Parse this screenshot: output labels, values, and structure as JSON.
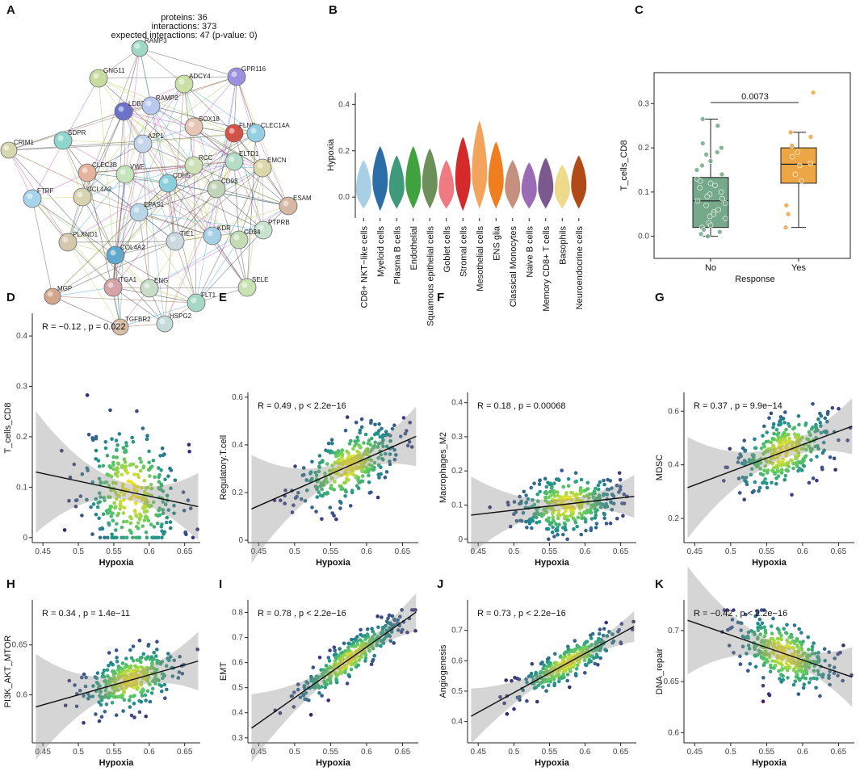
{
  "panel_letters": [
    "A",
    "B",
    "C",
    "D",
    "E",
    "F",
    "G",
    "H",
    "I",
    "J",
    "K"
  ],
  "network": {
    "stats": [
      "proteins: 36",
      "interactions: 373",
      "expected interactions: 47 (p-value: 0)"
    ],
    "nodes": [
      "RAMP3",
      "GNG11",
      "ADCY4",
      "GPR116",
      "LDB2",
      "RAMP2",
      "SDPR",
      "SOX18",
      "FLNB",
      "CLEC14A",
      "CRIM1",
      "CLEC3B",
      "A2P1",
      "RCC",
      "ELTD1",
      "EMCN",
      "FTRF",
      "VWF",
      "CDH5",
      "CD93",
      "ESAM",
      "CCL4A2",
      "EPAS1",
      "PTPRB",
      "PLXND1",
      "COL4A2",
      "TIE1",
      "KDR",
      "CD34",
      "ITGA1",
      "ENG",
      "SELE",
      "MGP",
      "FLT1",
      "TGFBR2",
      "HSPG2"
    ],
    "colors": [
      "#9fd8c6",
      "#c8dca2",
      "#c9e0a6",
      "#9a92e0",
      "#6b72c8",
      "#b9c8ee",
      "#8fd6cc",
      "#e6c6b4",
      "#d2524a",
      "#96cfe4",
      "#d8d8b0",
      "#e4b49c",
      "#c6d6ea",
      "#cfe0b8",
      "#b4dcc6",
      "#dbd7a8",
      "#a6d4ea",
      "#c6e4bc",
      "#8ccfdc",
      "#c2d4b8",
      "#d6b8a4",
      "#d8d4b0",
      "#b8d6e6",
      "#c8e2d0",
      "#d4c8ae",
      "#62a8cc",
      "#cad8e0",
      "#a6d0e6",
      "#c4dcb4",
      "#d4a4a8",
      "#c8dcc8",
      "#c8e2b4",
      "#d4a68c",
      "#a6d8c6",
      "#d8bca4",
      "#c4dcd8"
    ]
  },
  "chart_data": [
    {
      "id": "B",
      "type": "violin",
      "ylabel": "Hypoxia",
      "ylim": [
        -0.09,
        0.45
      ],
      "yticks": [
        0.0,
        0.2,
        0.4
      ],
      "categories": [
        "CD8+ NKT−like cells",
        "Myeloid cells",
        "Plasma B cells",
        "Endothelial",
        "Squamous epithelial cells",
        "Goblet cells",
        "Stromal cells",
        "Mesothelial cells",
        "ENS glia",
        "Classical Monocytes",
        "Naive B cells",
        "Memory CD8+ T cells",
        "Basophils",
        "Neuroendocrine cells"
      ],
      "colors": [
        "#a8cfe4",
        "#2d6ea8",
        "#3f9a7c",
        "#3fa23f",
        "#6d8f5a",
        "#f07a82",
        "#d42a2a",
        "#f2a45c",
        "#f07e1e",
        "#c6907e",
        "#9b6bb5",
        "#7a5a8e",
        "#efd98a",
        "#b24a18"
      ],
      "ranges": [
        [
          -0.05,
          0.16
        ],
        [
          -0.06,
          0.22
        ],
        [
          -0.05,
          0.18
        ],
        [
          -0.05,
          0.22
        ],
        [
          -0.05,
          0.21
        ],
        [
          -0.05,
          0.16
        ],
        [
          -0.06,
          0.26
        ],
        [
          -0.05,
          0.33
        ],
        [
          -0.05,
          0.24
        ],
        [
          -0.05,
          0.16
        ],
        [
          -0.05,
          0.15
        ],
        [
          -0.05,
          0.17
        ],
        [
          -0.05,
          0.14
        ],
        [
          -0.05,
          0.18
        ]
      ],
      "medians": [
        0.03,
        0.07,
        0.04,
        0.06,
        0.06,
        0.03,
        0.08,
        0.1,
        0.07,
        0.04,
        0.03,
        0.04,
        0.03,
        0.05
      ]
    },
    {
      "id": "C",
      "type": "box",
      "xlabel": "Response",
      "ylabel": "T_cells_CD8",
      "ylim": [
        -0.05,
        0.37
      ],
      "yticks": [
        0.0,
        0.1,
        0.2,
        0.3
      ],
      "categories": [
        "No",
        "Yes"
      ],
      "colors": [
        "#76a98a",
        "#eda645"
      ],
      "boxes": [
        {
          "q1": 0.02,
          "median": 0.08,
          "q3": 0.133,
          "lower": 0.0,
          "upper": 0.265,
          "points": [
            0.265,
            0.25,
            0.21,
            0.2,
            0.19,
            0.185,
            0.17,
            0.16,
            0.15,
            0.14,
            0.13,
            0.125,
            0.12,
            0.115,
            0.11,
            0.1,
            0.095,
            0.09,
            0.085,
            0.08,
            0.075,
            0.07,
            0.06,
            0.055,
            0.05,
            0.045,
            0.04,
            0.03,
            0.025,
            0.02,
            0.015,
            0.01,
            0.005,
            0.0
          ]
        },
        {
          "q1": 0.12,
          "median": 0.163,
          "q3": 0.2,
          "lower": 0.02,
          "upper": 0.235,
          "points": [
            0.325,
            0.235,
            0.225,
            0.205,
            0.19,
            0.18,
            0.165,
            0.16,
            0.14,
            0.125,
            0.07,
            0.05,
            0.02
          ]
        }
      ],
      "pvalue": "0.0073"
    },
    {
      "id": "D",
      "type": "scatter",
      "xlabel": "Hypoxia",
      "ylabel": "T_cells_CD8",
      "stat": "R = −0.12 , p = 0.022",
      "xlim": [
        0.435,
        0.672
      ],
      "xticks": [
        0.45,
        0.5,
        0.55,
        0.6,
        0.65
      ],
      "ylim": [
        -0.01,
        0.445
      ],
      "yticks": [
        0.0,
        0.1,
        0.2,
        0.3,
        0.4
      ],
      "slope": -0.3,
      "intercept": 0.262,
      "ci": 0.016,
      "spread": 0.08,
      "ymin": 0.0,
      "ymax": 0.43,
      "seed": 11
    },
    {
      "id": "E",
      "type": "scatter",
      "xlabel": "Hypoxia",
      "ylabel": "Regulatory.T.cell",
      "stat": "R = 0.49 , p < 2.2e−16",
      "xlim": [
        0.435,
        0.672
      ],
      "xticks": [
        0.45,
        0.5,
        0.55,
        0.6,
        0.65
      ],
      "ylim": [
        -0.01,
        0.62
      ],
      "yticks": [
        0.0,
        0.2,
        0.4,
        0.6
      ],
      "slope": 1.33,
      "intercept": -0.454,
      "ci": 0.03,
      "spread": 0.09,
      "ymin": 0.0,
      "ymax": 0.6,
      "seed": 23
    },
    {
      "id": "F",
      "type": "scatter",
      "xlabel": "Hypoxia",
      "ylabel": "Macrophages_M2",
      "stat": "R = 0.18 , p = 0.00068",
      "xlim": [
        0.435,
        0.672
      ],
      "xticks": [
        0.45,
        0.5,
        0.55,
        0.6,
        0.65
      ],
      "ylim": [
        -0.01,
        0.43
      ],
      "yticks": [
        0.0,
        0.1,
        0.2,
        0.3,
        0.4
      ],
      "slope": 0.24,
      "intercept": -0.035,
      "ci": 0.015,
      "spread": 0.055,
      "ymin": 0.0,
      "ymax": 0.42,
      "seed": 37
    },
    {
      "id": "G",
      "type": "scatter",
      "xlabel": "Hypoxia",
      "ylabel": "MDSC",
      "stat": "R = 0.37 , p = 9.9e−14",
      "xlim": [
        0.435,
        0.672
      ],
      "xticks": [
        0.45,
        0.5,
        0.55,
        0.6,
        0.65
      ],
      "ylim": [
        0.11,
        0.67
      ],
      "yticks": [
        0.2,
        0.4,
        0.6
      ],
      "slope": 1.0,
      "intercept": -0.125,
      "ci": 0.025,
      "spread": 0.08,
      "ymin": 0.12,
      "ymax": 0.66,
      "seed": 41
    },
    {
      "id": "H",
      "type": "scatter",
      "xlabel": "Hypoxia",
      "ylabel": "PI3K_AKT_MTOR",
      "stat": "R = 0.34 , p = 1.4e−11",
      "xlim": [
        0.435,
        0.672
      ],
      "xticks": [
        0.45,
        0.5,
        0.55,
        0.6,
        0.65
      ],
      "ylim": [
        0.552,
        0.695
      ],
      "yticks": [
        0.6,
        0.65
      ],
      "slope": 0.2,
      "intercept": 0.5,
      "ci": 0.007,
      "spread": 0.018,
      "ymin": 0.555,
      "ymax": 0.69,
      "seed": 53
    },
    {
      "id": "I",
      "type": "scatter",
      "xlabel": "Hypoxia",
      "ylabel": "EMT",
      "stat": "R = 0.78 , p < 2.2e−16",
      "xlim": [
        0.435,
        0.672
      ],
      "xticks": [
        0.45,
        0.5,
        0.55,
        0.6,
        0.65
      ],
      "ylim": [
        0.28,
        0.85
      ],
      "yticks": [
        0.3,
        0.4,
        0.5,
        0.6,
        0.7,
        0.8
      ],
      "slope": 2.02,
      "intercept": -0.55,
      "ci": 0.018,
      "spread": 0.045,
      "ymin": 0.29,
      "ymax": 0.81,
      "seed": 67
    },
    {
      "id": "J",
      "type": "scatter",
      "xlabel": "Hypoxia",
      "ylabel": "Angiogenesis",
      "stat": "R = 0.73 , p < 2.2e−16",
      "xlim": [
        0.435,
        0.672
      ],
      "xticks": [
        0.45,
        0.5,
        0.55,
        0.6,
        0.65
      ],
      "ylim": [
        0.33,
        0.8
      ],
      "yticks": [
        0.4,
        0.5,
        0.6,
        0.7
      ],
      "slope": 1.29,
      "intercept": -0.15,
      "ci": 0.012,
      "spread": 0.035,
      "ymin": 0.34,
      "ymax": 0.77,
      "seed": 71
    },
    {
      "id": "K",
      "type": "scatter",
      "xlabel": "Hypoxia",
      "ylabel": "DNA_repair",
      "stat": "R = −0.42 , p < 2.2e−16",
      "xlim": [
        0.435,
        0.672
      ],
      "xticks": [
        0.45,
        0.5,
        0.55,
        0.6,
        0.65
      ],
      "ylim": [
        0.59,
        0.73
      ],
      "yticks": [
        0.6,
        0.65,
        0.7
      ],
      "slope": -0.243,
      "intercept": 0.817,
      "ci": 0.007,
      "spread": 0.02,
      "ymin": 0.595,
      "ymax": 0.72,
      "seed": 89
    }
  ]
}
